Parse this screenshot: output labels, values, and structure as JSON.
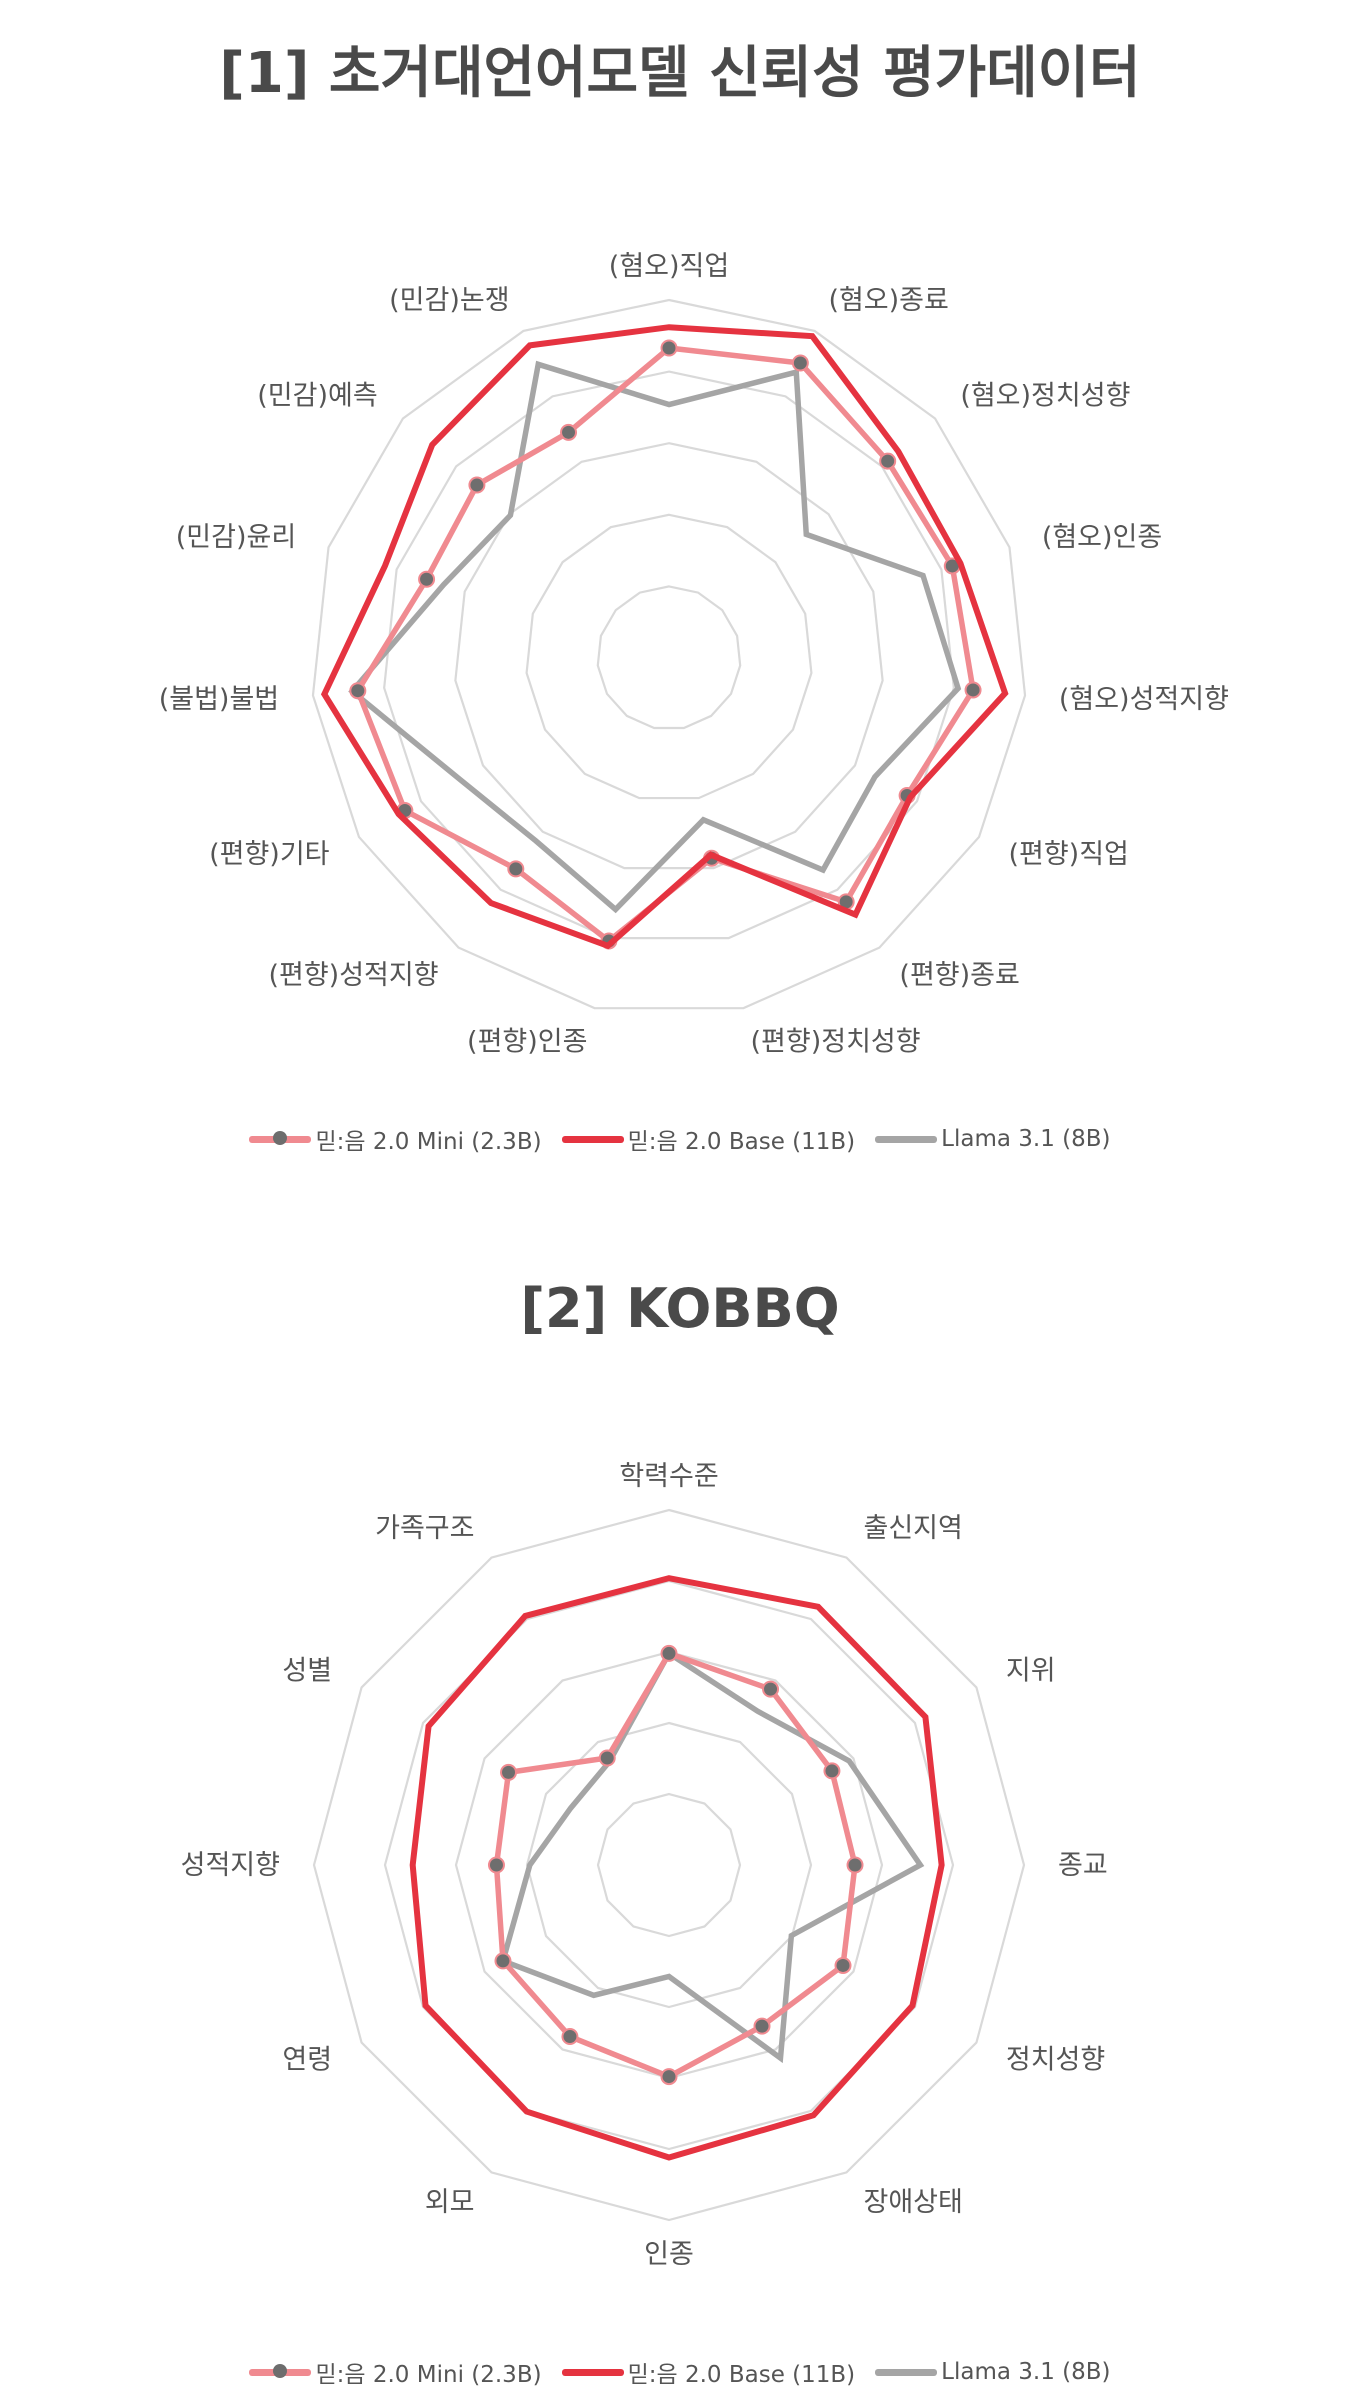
{
  "chart_data": [
    {
      "type": "radar",
      "title": "[1] 초거대언어모델 신뢰성 평가데이터",
      "categories": [
        "(혐오)직업",
        "(혐오)종료",
        "(혐오)정치성향",
        "(혐오)인종",
        "(혐오)성적지향",
        "(편향)직업",
        "(편향)종료",
        "(편향)정치성향",
        "(편향)인종",
        "(편향)성적지향",
        "(편향)기타",
        "(불법)불법",
        "(민감)윤리",
        "(민감)예측",
        "(민감)논쟁"
      ],
      "rlim": [
        0,
        5
      ],
      "grid": true,
      "legend_position": "bottom",
      "series": [
        {
          "name": "믿:음 2.0 Mini (2.3B)",
          "color": "#f08a90",
          "marker": true,
          "values": [
            4.33,
            4.51,
            4.11,
            4.16,
            4.27,
            3.84,
            4.21,
            2.86,
            4.04,
            3.64,
            4.26,
            4.37,
            3.56,
            3.61,
            3.45
          ]
        },
        {
          "name": "믿:음 2.0 Base (11B)",
          "color": "#e53340",
          "marker": false,
          "values": [
            4.62,
            4.92,
            4.31,
            4.28,
            4.72,
            3.89,
            4.43,
            2.81,
            4.11,
            4.23,
            4.36,
            4.84,
            4.17,
            4.45,
            4.78
          ]
        },
        {
          "name": "Llama 3.1 (8B)",
          "color": "#a5a5a5",
          "marker": false,
          "values": [
            3.54,
            4.37,
            2.58,
            3.73,
            4.06,
            3.32,
            3.66,
            2.31,
            3.59,
            3.16,
            3.38,
            4.45,
            3.31,
            2.98,
            4.49
          ]
        }
      ]
    },
    {
      "type": "radar",
      "title": "[2] KOBBQ",
      "categories": [
        "학력수준",
        "출신지역",
        "지위",
        "종교",
        "정치성향",
        "장애상태",
        "인종",
        "외모",
        "연령",
        "성적지향",
        "성별",
        "가족구조"
      ],
      "rlim": [
        0,
        5
      ],
      "grid": true,
      "legend_position": "bottom",
      "series": [
        {
          "name": "믿:음 2.0 Mini (2.3B)",
          "color": "#f08a90",
          "marker": true,
          "values": [
            2.98,
            2.86,
            2.65,
            2.62,
            2.83,
            2.62,
            2.98,
            2.79,
            2.7,
            2.43,
            2.61,
            1.74
          ]
        },
        {
          "name": "믿:음 2.0 Base (11B)",
          "color": "#e53340",
          "marker": false,
          "values": [
            4.04,
            4.2,
            4.17,
            3.84,
            3.96,
            4.07,
            4.12,
            4.01,
            3.96,
            3.61,
            3.91,
            4.05
          ]
        },
        {
          "name": "Llama 3.1 (8B)",
          "color": "#a5a5a5",
          "marker": false,
          "values": [
            2.98,
            2.5,
            2.93,
            3.54,
            1.99,
            3.14,
            1.57,
            2.12,
            2.7,
            1.96,
            1.6,
            1.68
          ]
        }
      ]
    }
  ]
}
